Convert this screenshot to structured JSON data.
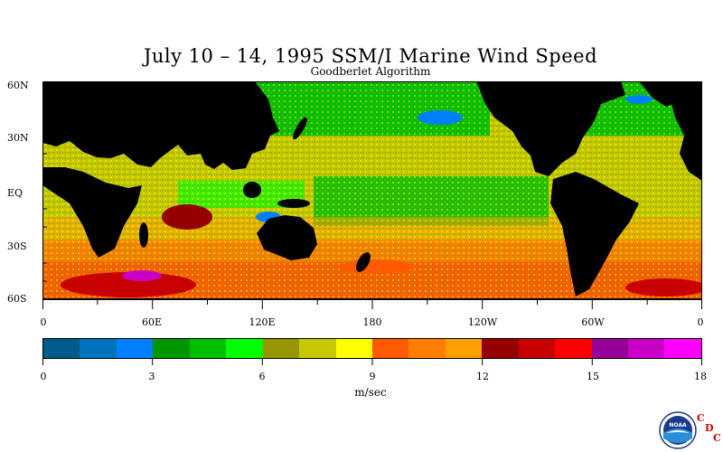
{
  "title": "July 10 – 14, 1995 SSM/I Marine Wind Speed",
  "subtitle": "Goodberlet Algorithm",
  "lat_labels": [
    "60N",
    "30N",
    "EQ",
    "30S",
    "60S"
  ],
  "lon_labels": [
    "0",
    "60E",
    "120E",
    "180",
    "120W",
    "60W",
    "0"
  ],
  "colorbar": {
    "colors": [
      "#005a8c",
      "#0073be",
      "#0080ff",
      "#009600",
      "#00be00",
      "#00ff00",
      "#969600",
      "#c8c800",
      "#ffff00",
      "#ff5a00",
      "#ff7d00",
      "#ffa000",
      "#960000",
      "#c80000",
      "#ff0000",
      "#960096",
      "#c800c8",
      "#ff00ff"
    ],
    "tick_labels": [
      "0",
      "3",
      "6",
      "9",
      "12",
      "15",
      "18"
    ],
    "unit": "m/sec"
  },
  "logo": {
    "name": "NOAA",
    "org_letters": [
      "C",
      "D",
      "C"
    ]
  },
  "colors": {
    "land": "#000000",
    "ocean_default": "#c8c800"
  }
}
